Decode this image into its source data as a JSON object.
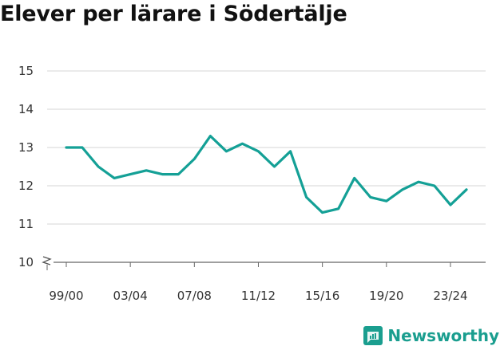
{
  "title": "Elever per lärare i Södertälje",
  "brand": {
    "name": "Newsworthy",
    "icon": "newsworthy-logo-icon",
    "color": "#1a9e8f"
  },
  "chart_data": {
    "type": "line",
    "title": "Elever per lärare i Södertälje",
    "xlabel": "",
    "ylabel": "",
    "ylim": [
      10,
      15
    ],
    "yticks": [
      10,
      11,
      12,
      13,
      14,
      15
    ],
    "y_axis_break": true,
    "grid": true,
    "legend": "none",
    "line_color": "#14a096",
    "x": [
      "99/00",
      "00/01",
      "01/02",
      "02/03",
      "03/04",
      "04/05",
      "05/06",
      "06/07",
      "07/08",
      "08/09",
      "09/10",
      "10/11",
      "11/12",
      "12/13",
      "13/14",
      "14/15",
      "15/16",
      "16/17",
      "17/18",
      "18/19",
      "19/20",
      "20/21",
      "21/22",
      "22/23",
      "23/24",
      "24/25"
    ],
    "xtick_labels": [
      "99/00",
      "03/04",
      "07/08",
      "11/12",
      "15/16",
      "19/20",
      "23/24"
    ],
    "series": [
      {
        "values": [
          13.0,
          13.0,
          12.5,
          12.2,
          12.3,
          12.4,
          12.3,
          12.3,
          12.7,
          13.3,
          12.9,
          13.1,
          12.9,
          12.5,
          12.9,
          11.7,
          11.3,
          11.4,
          12.2,
          11.7,
          11.6,
          11.9,
          12.1,
          12.0,
          11.5,
          11.9
        ]
      }
    ]
  }
}
